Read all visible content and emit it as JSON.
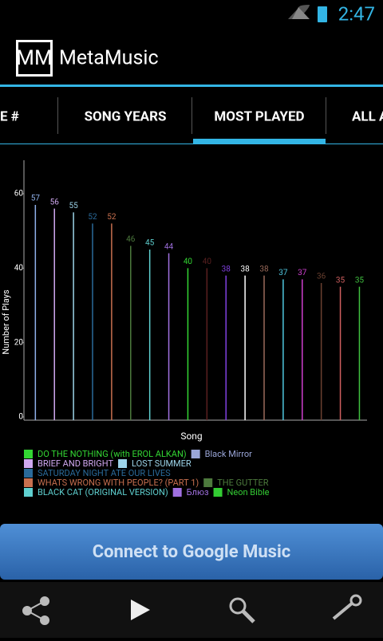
{
  "status_bar": {
    "time": "2:47"
  },
  "app_bar": {
    "logo": "MM",
    "title": "MetaMusic"
  },
  "tabs": [
    "E #",
    "SONG YEARS",
    "MOST PLAYED",
    "ALL A"
  ],
  "chart_data": {
    "type": "bar",
    "x_label": "Song",
    "y_label": "Number of Plays",
    "categories": [
      null,
      null,
      null,
      null,
      null,
      null,
      null,
      null,
      null,
      null,
      null,
      null,
      null,
      null,
      null,
      null,
      null,
      null
    ],
    "values": [
      57,
      56,
      55,
      52,
      52,
      46,
      45,
      44,
      40,
      40,
      38,
      38,
      38,
      37,
      37,
      36,
      35,
      35
    ],
    "colors": [
      "#8fb0ea",
      "#d0a8f0",
      "#9cd3e8",
      "#2a6a9a",
      "#c8704f",
      "#4d7a3d",
      "#5fd0d0",
      "#a070e0",
      "#33d633",
      "#5a2020",
      "#8040e0",
      "#ffffff",
      "#9a6a5a",
      "#50c8e0",
      "#d040d0",
      "#6a4030",
      "#d06060",
      "#40c040"
    ],
    "ylim": [
      0,
      69
    ],
    "yticks": [
      0,
      20,
      40,
      60
    ]
  },
  "legend": {
    "rows": [
      [
        {
          "name": "DO THE NOTHING (with EROL ALKAN)",
          "color": "#33d633"
        },
        {
          "name": "Black Mirror",
          "color": "#9aa6d8"
        }
      ],
      [
        {
          "name": "BRIEF AND BRIGHT",
          "color": "#d0a8f0"
        },
        {
          "name": "LOST SUMMER",
          "color": "#9cd3e8"
        }
      ],
      [
        {
          "name": "SATURDAY NIGHT ATE OUR LIVES",
          "color": "#2a6a9a"
        }
      ],
      [
        {
          "name": "WHATS WRONG WITH PEOPLE? (PART 1)",
          "color": "#c8704f"
        },
        {
          "name": "THE GUTTER",
          "color": "#4d7a3d"
        }
      ],
      [
        {
          "name": "BLACK CAT (ORIGINAL VERSION)",
          "color": "#5fd0d0"
        },
        {
          "name": "Блюз",
          "color": "#a070e0"
        },
        {
          "name": "Neon Bible",
          "color": "#33cc33"
        }
      ]
    ]
  },
  "button": "Connect to Google Music"
}
